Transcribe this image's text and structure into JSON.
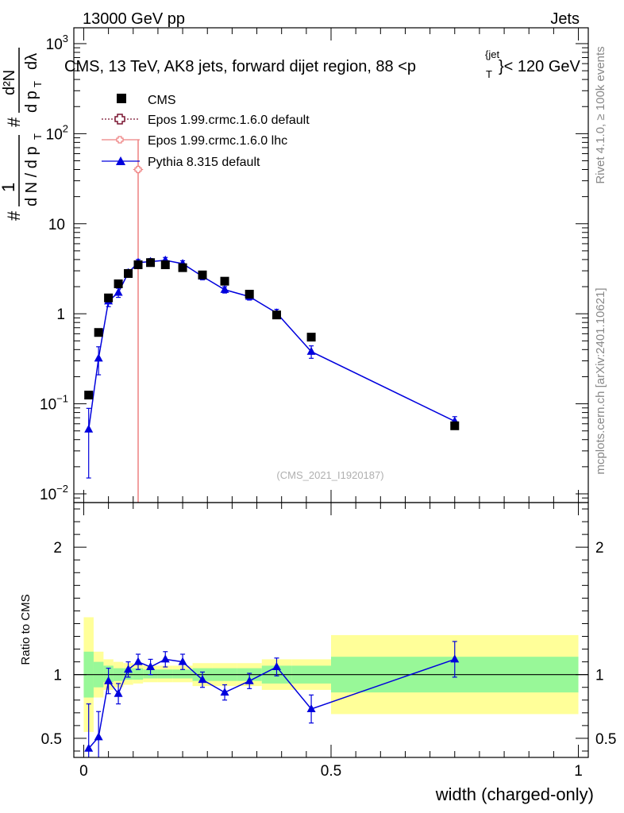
{
  "header": {
    "left": "13000 GeV pp",
    "right": "Jets",
    "title": "CMS, 13 TeV, AK8 jets, forward dijet region, 88 <p",
    "title_sup": "{jet",
    "title_sub": "T",
    "title_end": "}< 120 GeV"
  },
  "side_labels": {
    "rivet": "Rivet 4.1.0, ≥ 100k events",
    "mcplots": "mcplots.cern.ch [arXiv:2401.10621]"
  },
  "watermark": "(CMS_2021_I1920187)",
  "ylabel_main": {
    "frac_num": "1",
    "frac_den": "d N / d p",
    "frac_den_sub": "T",
    "hash1": "#",
    "hash2": "#",
    "num": "d²N",
    "den_a": "d p",
    "den_a_sub": "T",
    "den_b": "dλ"
  },
  "ylabel_ratio": "Ratio to CMS",
  "xlabel": "width (charged-only)",
  "legend": [
    {
      "label": "CMS",
      "color": "#000000"
    },
    {
      "label": "Epos 1.99.crmc.1.6.0 default",
      "color": "#7a1530"
    },
    {
      "label": "Epos 1.99.crmc.1.6.0 lhc",
      "color": "#ee8080"
    },
    {
      "label": "Pythia 8.315 default",
      "color": "#0000dd"
    }
  ],
  "colors": {
    "cms": "#000000",
    "epos_default": "#7a1530",
    "epos_lhc": "#ee8080",
    "pythia": "#0000dd",
    "band_green": "#98f898",
    "band_yellow": "#ffff99"
  },
  "chart_data": [
    {
      "type": "scatter",
      "name": "main",
      "yscale": "log",
      "xlim": [
        -0.02,
        1.02
      ],
      "ylim": [
        0.008,
        1500
      ],
      "x_ticks": [
        0,
        0.5,
        1
      ],
      "x_tick_labels": [
        "0",
        "0.5",
        "1"
      ],
      "y_ticks": [
        0.01,
        0.1,
        1,
        10,
        100,
        1000
      ],
      "y_tick_labels": [
        [
          "10",
          "−2"
        ],
        [
          "10",
          "−1"
        ],
        [
          "1",
          ""
        ],
        [
          "10",
          ""
        ],
        [
          "10",
          "2"
        ],
        [
          "10",
          "3"
        ]
      ],
      "series": [
        {
          "name": "CMS",
          "x": [
            0.01,
            0.03,
            0.05,
            0.07,
            0.09,
            0.11,
            0.135,
            0.165,
            0.2,
            0.24,
            0.285,
            0.335,
            0.39,
            0.46,
            0.75
          ],
          "y": [
            0.125,
            0.62,
            1.5,
            2.15,
            2.8,
            3.5,
            3.7,
            3.5,
            3.25,
            2.7,
            2.3,
            1.65,
            0.97,
            0.55,
            0.057
          ]
        },
        {
          "name": "Pythia 8.315 default",
          "x": [
            0.01,
            0.03,
            0.05,
            0.07,
            0.09,
            0.11,
            0.135,
            0.165,
            0.2,
            0.24,
            0.285,
            0.335,
            0.39,
            0.46,
            0.75
          ],
          "y": [
            0.052,
            0.32,
            1.38,
            1.72,
            2.85,
            3.7,
            3.8,
            3.92,
            3.6,
            2.6,
            1.85,
            1.55,
            1.02,
            0.38,
            0.064
          ],
          "yerr": [
            0.037,
            0.11,
            0.18,
            0.2,
            0.25,
            0.3,
            0.3,
            0.3,
            0.28,
            0.22,
            0.15,
            0.13,
            0.1,
            0.06,
            0.008
          ]
        },
        {
          "name": "Epos 1.99.crmc.1.6.0 lhc",
          "x": [
            0.11
          ],
          "y": [
            40
          ],
          "xerr": [
            0.01
          ],
          "yerr_low": [
            39.992
          ],
          "yerr_high": [
            0
          ]
        }
      ]
    },
    {
      "type": "scatter",
      "name": "ratio",
      "xlim": [
        -0.02,
        1.02
      ],
      "ylim": [
        0.35,
        2.35
      ],
      "y_ticks": [
        0.5,
        1,
        2
      ],
      "y_tick_labels": [
        "0.5",
        "1",
        "2"
      ],
      "bands": {
        "edges": [
          0,
          0.02,
          0.04,
          0.06,
          0.08,
          0.1,
          0.12,
          0.15,
          0.18,
          0.22,
          0.26,
          0.31,
          0.36,
          0.42,
          0.5,
          1.0
        ],
        "green_low": [
          0.82,
          0.9,
          0.94,
          0.95,
          0.96,
          0.96,
          0.97,
          0.97,
          0.97,
          0.95,
          0.95,
          0.95,
          0.93,
          0.93,
          0.86
        ],
        "green_high": [
          1.18,
          1.1,
          1.07,
          1.05,
          1.05,
          1.05,
          1.04,
          1.04,
          1.04,
          1.05,
          1.05,
          1.05,
          1.07,
          1.07,
          1.14
        ],
        "yellow_low": [
          0.55,
          0.82,
          0.88,
          0.9,
          0.92,
          0.93,
          0.94,
          0.94,
          0.94,
          0.91,
          0.91,
          0.91,
          0.88,
          0.88,
          0.69
        ],
        "yellow_high": [
          1.45,
          1.18,
          1.12,
          1.1,
          1.09,
          1.08,
          1.07,
          1.07,
          1.07,
          1.09,
          1.09,
          1.09,
          1.12,
          1.12,
          1.31
        ]
      },
      "series": [
        {
          "name": "Pythia 8.315 default",
          "x": [
            0.01,
            0.03,
            0.05,
            0.07,
            0.09,
            0.11,
            0.135,
            0.165,
            0.2,
            0.24,
            0.285,
            0.335,
            0.39,
            0.46,
            0.75
          ],
          "y": [
            0.42,
            0.51,
            0.95,
            0.85,
            1.04,
            1.1,
            1.06,
            1.12,
            1.1,
            0.96,
            0.86,
            0.95,
            1.06,
            0.73,
            1.12
          ],
          "yerr": [
            0.35,
            0.2,
            0.1,
            0.08,
            0.06,
            0.06,
            0.06,
            0.06,
            0.06,
            0.06,
            0.06,
            0.06,
            0.07,
            0.11,
            0.14
          ]
        }
      ]
    }
  ]
}
